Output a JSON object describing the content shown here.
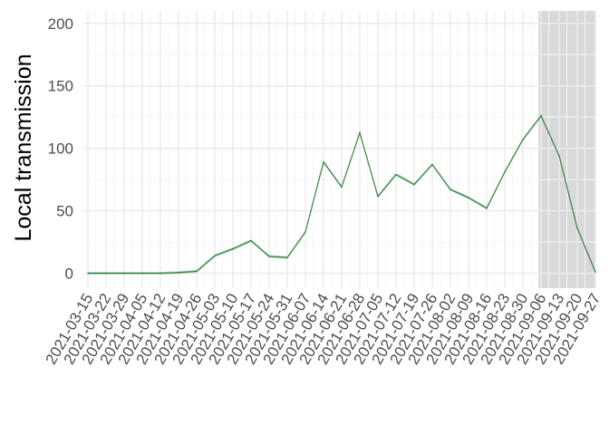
{
  "chart_data": {
    "type": "line",
    "title": "",
    "xlabel": "",
    "ylabel": "Local transmission",
    "ylim": [
      -12,
      210
    ],
    "yticks": [
      0,
      50,
      100,
      150,
      200
    ],
    "grid": true,
    "legend": "none",
    "shaded_region": {
      "from": "2021-09-05",
      "to": "2021-09-27",
      "color": "#d9d9d9"
    },
    "x": [
      "2021-03-15",
      "2021-03-22",
      "2021-03-29",
      "2021-04-05",
      "2021-04-12",
      "2021-04-19",
      "2021-04-26",
      "2021-05-03",
      "2021-05-10",
      "2021-05-17",
      "2021-05-24",
      "2021-05-31",
      "2021-06-07",
      "2021-06-14",
      "2021-06-21",
      "2021-06-28",
      "2021-07-05",
      "2021-07-12",
      "2021-07-19",
      "2021-07-26",
      "2021-08-02",
      "2021-08-09",
      "2021-08-16",
      "2021-08-23",
      "2021-08-30",
      "2021-09-06",
      "2021-09-13",
      "2021-09-20",
      "2021-09-27"
    ],
    "series": [
      {
        "values": [
          0,
          0,
          0,
          0,
          0,
          0.5,
          1.5,
          14,
          19.5,
          26,
          13.5,
          12.5,
          33,
          89,
          69,
          112.5,
          61.5,
          79,
          71,
          87,
          67,
          60.5,
          52,
          81,
          107,
          126,
          94,
          36,
          1
        ],
        "color": "#1f6b1f",
        "band_color": "#9fd4bf"
      }
    ]
  },
  "colors": {
    "panel": "#ffffff",
    "grid_major": "#ebebeb",
    "grid_minor": "#f5f5f5",
    "line": "#1f6b1f",
    "band": "#9fd4bf",
    "shade": "#d9d9d9"
  }
}
